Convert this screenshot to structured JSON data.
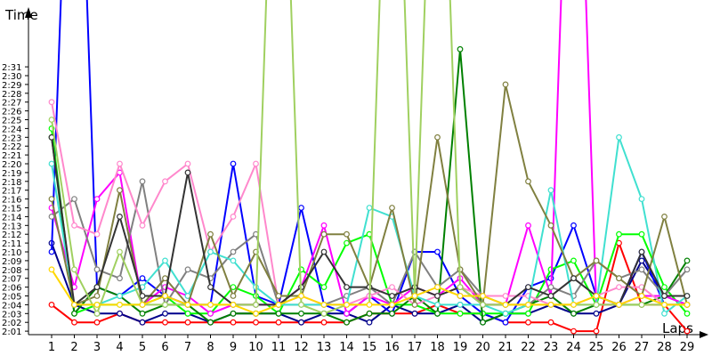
{
  "chart_data": {
    "type": "line",
    "ylabel": "Time",
    "xlabel": "Laps",
    "x": [
      1,
      2,
      3,
      4,
      5,
      6,
      7,
      8,
      9,
      10,
      11,
      12,
      13,
      14,
      15,
      16,
      17,
      18,
      19,
      20,
      21,
      22,
      23,
      24,
      25,
      26,
      27,
      28,
      29
    ],
    "yticks": [
      "2:01",
      "2:02",
      "2:03",
      "2:04",
      "2:05",
      "2:06",
      "2:07",
      "2:08",
      "2:09",
      "2:10",
      "2:11",
      "2:12",
      "2:13",
      "2:14",
      "2:15",
      "2:16",
      "2:17",
      "2:18",
      "2:19",
      "2:20",
      "2:21",
      "2:22",
      "2:23",
      "2:24",
      "2:25",
      "2:26",
      "2:27",
      "2:28",
      "2:29",
      "2:30",
      "2:31"
    ],
    "ylim_seconds": [
      120,
      152
    ],
    "grid": false,
    "series": [
      {
        "color": "#ff0000",
        "values": [
          124,
          122,
          122,
          123,
          122,
          122,
          122,
          122,
          122,
          122,
          122,
          122,
          122,
          122,
          123,
          123,
          123,
          124,
          123,
          123,
          122,
          122,
          122,
          121,
          121,
          131,
          124,
          124,
          121
        ]
      },
      {
        "color": "#00008b",
        "values": [
          131,
          124,
          123,
          123,
          122,
          123,
          123,
          122,
          123,
          123,
          123,
          122,
          123,
          123,
          122,
          124,
          123,
          123,
          124,
          122,
          123,
          123,
          124,
          123,
          123,
          124,
          129,
          125,
          124
        ]
      },
      {
        "color": "#0000ff",
        "values": [
          130,
          200,
          126,
          125,
          127,
          125,
          124,
          124,
          140,
          125,
          124,
          135,
          124,
          123,
          125,
          123,
          130,
          130,
          125,
          123,
          122,
          126,
          127,
          133,
          125,
          124,
          130,
          124,
          124
        ]
      },
      {
        "color": "#00ff00",
        "values": [
          144,
          123,
          124,
          124,
          124,
          125,
          123,
          123,
          126,
          125,
          123,
          128,
          126,
          131,
          132,
          124,
          124,
          123,
          123,
          123,
          123,
          123,
          128,
          129,
          124,
          132,
          132,
          126,
          123
        ]
      },
      {
        "color": "#008000",
        "values": [
          143,
          123,
          126,
          125,
          123,
          124,
          124,
          122,
          123,
          123,
          123,
          123,
          123,
          122,
          123,
          123,
          125,
          123,
          153,
          122,
          123,
          124,
          125,
          123,
          124,
          124,
          124,
          125,
          129
        ]
      },
      {
        "color": "#ff00ff",
        "values": [
          135,
          126,
          136,
          139,
          124,
          126,
          125,
          123,
          124,
          124,
          124,
          126,
          133,
          123,
          125,
          124,
          126,
          125,
          127,
          124,
          124,
          133,
          125,
          200,
          124,
          124,
          125,
          125,
          124
        ]
      },
      {
        "color": "#808080",
        "values": [
          134,
          136,
          128,
          127,
          138,
          124,
          128,
          127,
          130,
          132,
          124,
          124,
          124,
          125,
          126,
          124,
          130,
          126,
          128,
          125,
          124,
          124,
          126,
          125,
          129,
          127,
          128,
          125,
          128
        ]
      },
      {
        "color": "#ff88cc",
        "values": [
          147,
          133,
          132,
          140,
          133,
          138,
          140,
          130,
          134,
          140,
          124,
          125,
          124,
          124,
          125,
          126,
          124,
          125,
          126,
          125,
          125,
          125,
          124,
          124,
          125,
          126,
          126,
          124,
          124
        ]
      },
      {
        "color": "#40e0d0",
        "values": [
          140,
          124,
          124,
          125,
          126,
          129,
          125,
          130,
          129,
          126,
          124,
          124,
          124,
          124,
          135,
          134,
          125,
          124,
          124,
          124,
          123,
          124,
          137,
          124,
          124,
          143,
          136,
          123,
          125
        ]
      },
      {
        "color": "#808040",
        "values": [
          136,
          124,
          125,
          137,
          124,
          127,
          124,
          132,
          125,
          130,
          125,
          125,
          132,
          132,
          126,
          135,
          124,
          143,
          128,
          124,
          149,
          138,
          133,
          127,
          129,
          127,
          125,
          134,
          124
        ]
      },
      {
        "color": "#333333",
        "values": [
          143,
          124,
          126,
          134,
          125,
          125,
          139,
          126,
          124,
          124,
          124,
          126,
          130,
          126,
          126,
          125,
          126,
          125,
          126,
          124,
          124,
          126,
          125,
          127,
          125,
          124,
          130,
          125,
          125
        ]
      },
      {
        "color": "#a0d060",
        "values": [
          145,
          128,
          123,
          130,
          124,
          124,
          124,
          124,
          124,
          124,
          200,
          124,
          123,
          124,
          124,
          200,
          125,
          200,
          126,
          124,
          124,
          124,
          124,
          124,
          124,
          124,
          124,
          124,
          124
        ]
      },
      {
        "color": "#ffd700",
        "values": [
          128,
          124,
          124,
          124,
          124,
          125,
          124,
          124,
          124,
          123,
          124,
          125,
          124,
          124,
          124,
          124,
          125,
          126,
          125,
          125,
          124,
          124,
          124,
          124,
          125,
          124,
          125,
          124,
          124
        ]
      }
    ]
  }
}
